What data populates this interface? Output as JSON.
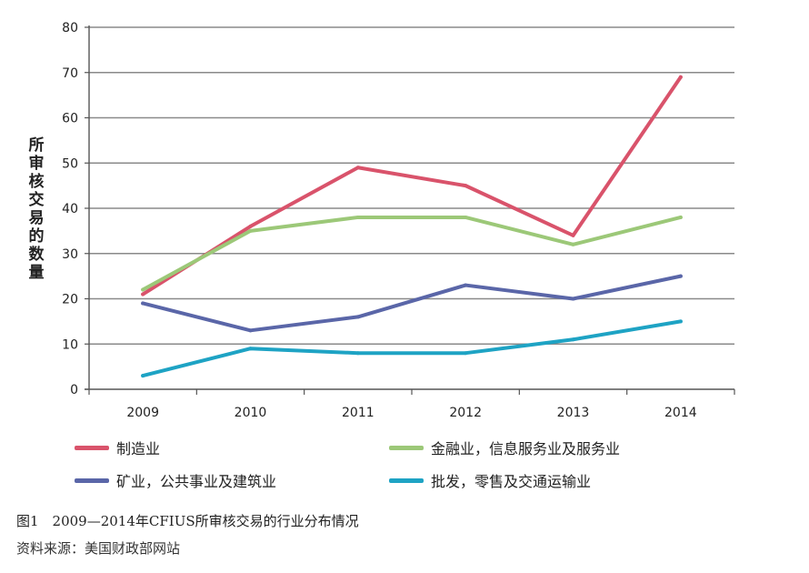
{
  "chart_data": {
    "type": "line",
    "ylabel": "所审核交易的数量",
    "ylim": [
      0,
      80
    ],
    "yticks": [
      "0",
      "10",
      "20",
      "30",
      "40",
      "50",
      "60",
      "70",
      "80"
    ],
    "categories": [
      "2009",
      "2010",
      "2011",
      "2012",
      "2013",
      "2014"
    ],
    "grid": true,
    "legend_placement": "bottom",
    "series": [
      {
        "name": "制造业",
        "color": "#d9536b",
        "values": [
          21,
          36,
          49,
          45,
          34,
          69
        ]
      },
      {
        "name": "金融业，信息服务业及服务业",
        "color": "#9cc878",
        "values": [
          22,
          35,
          38,
          38,
          32,
          38
        ]
      },
      {
        "name": "矿业，公共事业及建筑业",
        "color": "#5a66a8",
        "values": [
          19,
          13,
          16,
          23,
          20,
          25
        ]
      },
      {
        "name": "批发，零售及交通运输业",
        "color": "#1ea3c4",
        "values": [
          3,
          9,
          8,
          8,
          11,
          15
        ]
      }
    ]
  },
  "caption": "图1　2009—2014年CFIUS所审核交易的行业分布情况",
  "source": "资料来源：美国财政部网站"
}
